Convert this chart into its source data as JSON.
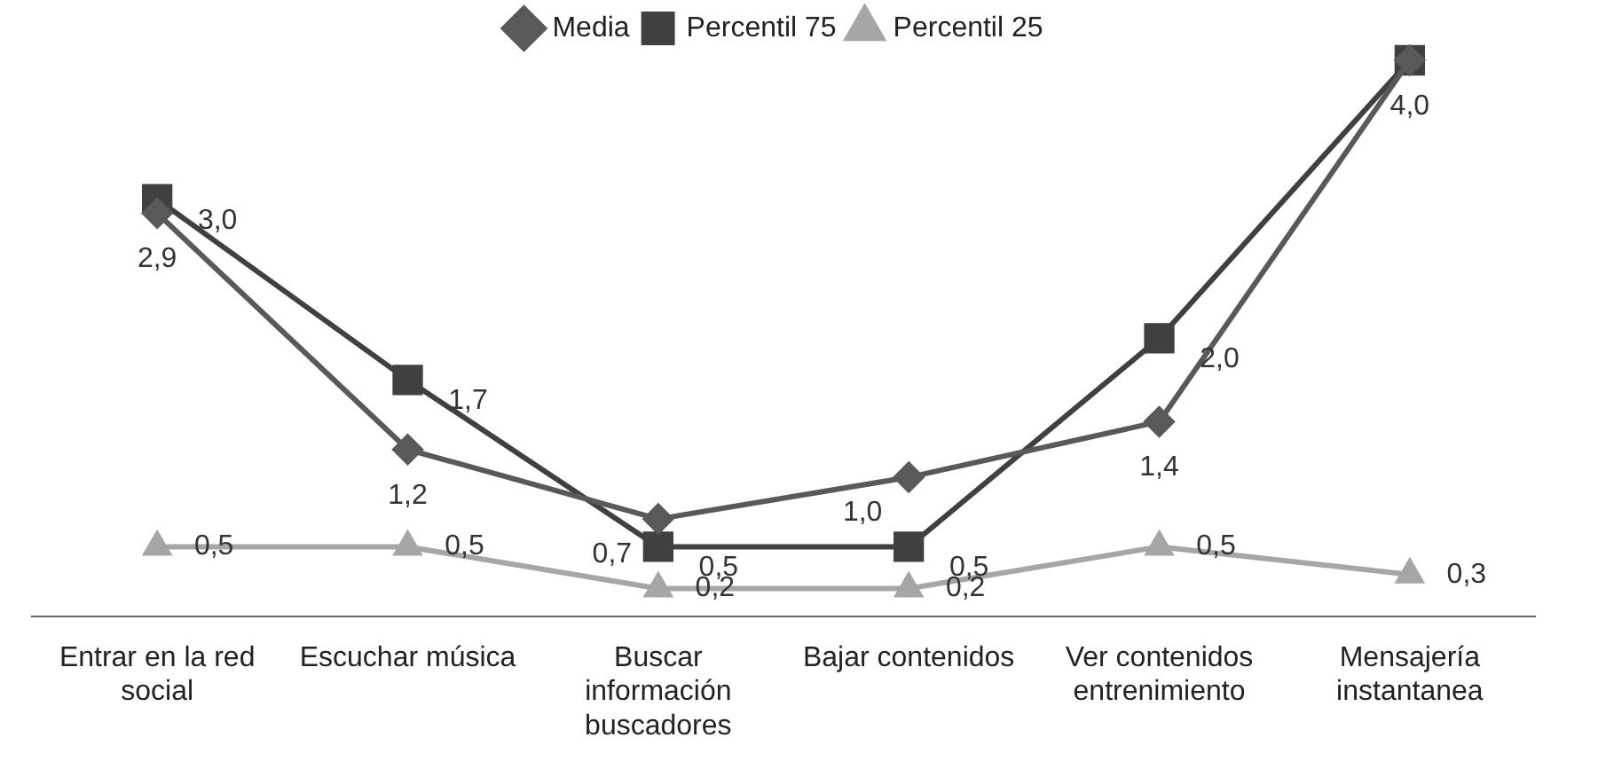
{
  "chart_data": {
    "type": "line",
    "categories": [
      "Entrar en la red social",
      "Escuchar música",
      "Buscar información buscadores",
      "Bajar contenidos",
      "Ver contenidos entrenimiento",
      "Mensajería instantanea"
    ],
    "series": [
      {
        "name": "Media",
        "color": "#595959",
        "marker": "diamond",
        "values": [
          2.9,
          1.2,
          0.7,
          1.0,
          1.4,
          4.0
        ],
        "value_labels": [
          "2,9",
          "1,2",
          "0,7",
          "1,0",
          "1,4",
          "4,0"
        ]
      },
      {
        "name": "Percentil 75",
        "color": "#404040",
        "marker": "square",
        "values": [
          3.0,
          1.7,
          0.5,
          0.5,
          2.0,
          4.0
        ],
        "value_labels": [
          "3,0",
          "1,7",
          "0,5",
          "0,5",
          "2,0",
          null
        ]
      },
      {
        "name": "Percentil 25",
        "color": "#a6a6a6",
        "marker": "triangle",
        "values": [
          0.5,
          0.5,
          0.2,
          0.2,
          0.5,
          0.3
        ],
        "value_labels": [
          "0,5",
          "0,5",
          "0,2",
          "0,2",
          "0,5",
          "0,3"
        ]
      }
    ],
    "tick_labels": "x",
    "grid": false,
    "legend": "top",
    "line_style": "solid"
  }
}
